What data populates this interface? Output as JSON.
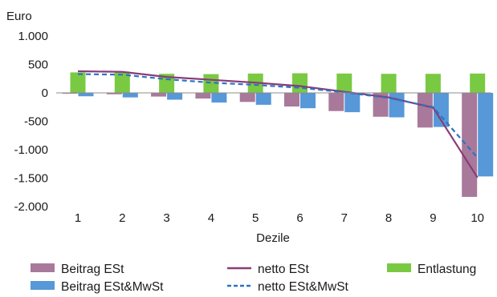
{
  "chart_data": {
    "type": "bar",
    "ylabel": "Euro",
    "xlabel": "Dezile",
    "categories": [
      "1",
      "2",
      "3",
      "4",
      "5",
      "6",
      "7",
      "8",
      "9",
      "10"
    ],
    "ylim": [
      -2000,
      1000
    ],
    "yticks": [
      1000,
      500,
      0,
      -500,
      -1000,
      -1500,
      -2000
    ],
    "ytick_labels": [
      "1.000",
      "500",
      "0",
      "-500",
      "-1.000",
      "-1.500",
      "-2.000"
    ],
    "grid": false,
    "legend_position": "bottom",
    "bar_series": [
      {
        "name": "Beitrag ESt",
        "color": "#a8799a",
        "values": [
          -15,
          -25,
          -65,
          -100,
          -160,
          -240,
          -320,
          -420,
          -610,
          -1830
        ]
      },
      {
        "name": "Beitrag ESt&MwSt",
        "color": "#5698d8",
        "values": [
          -60,
          -80,
          -120,
          -170,
          -210,
          -270,
          -340,
          -430,
          -600,
          -1470
        ]
      },
      {
        "name": "Entlastung",
        "color": "#7ac943",
        "values": [
          360,
          375,
          335,
          330,
          340,
          345,
          340,
          335,
          335,
          340
        ]
      }
    ],
    "line_series": [
      {
        "name": "netto ESt",
        "color": "#8a3b77",
        "dash": "solid",
        "values": [
          380,
          370,
          280,
          230,
          180,
          120,
          20,
          -80,
          -260,
          -1490
        ]
      },
      {
        "name": "netto ESt&MwSt",
        "color": "#2b74c2",
        "dash": "dashed",
        "values": [
          330,
          320,
          240,
          180,
          140,
          90,
          10,
          -90,
          -250,
          -1140
        ]
      }
    ],
    "legend": [
      {
        "name": "Beitrag ESt",
        "kind": "bar",
        "color": "#a8799a"
      },
      {
        "name": "netto ESt",
        "kind": "line",
        "color": "#8a3b77"
      },
      {
        "name": "Entlastung",
        "kind": "bar",
        "color": "#7ac943"
      },
      {
        "name": "Beitrag ESt&MwSt",
        "kind": "bar",
        "color": "#5698d8"
      },
      {
        "name": "netto ESt&MwSt",
        "kind": "dashed-line",
        "color": "#2b74c2"
      }
    ]
  }
}
